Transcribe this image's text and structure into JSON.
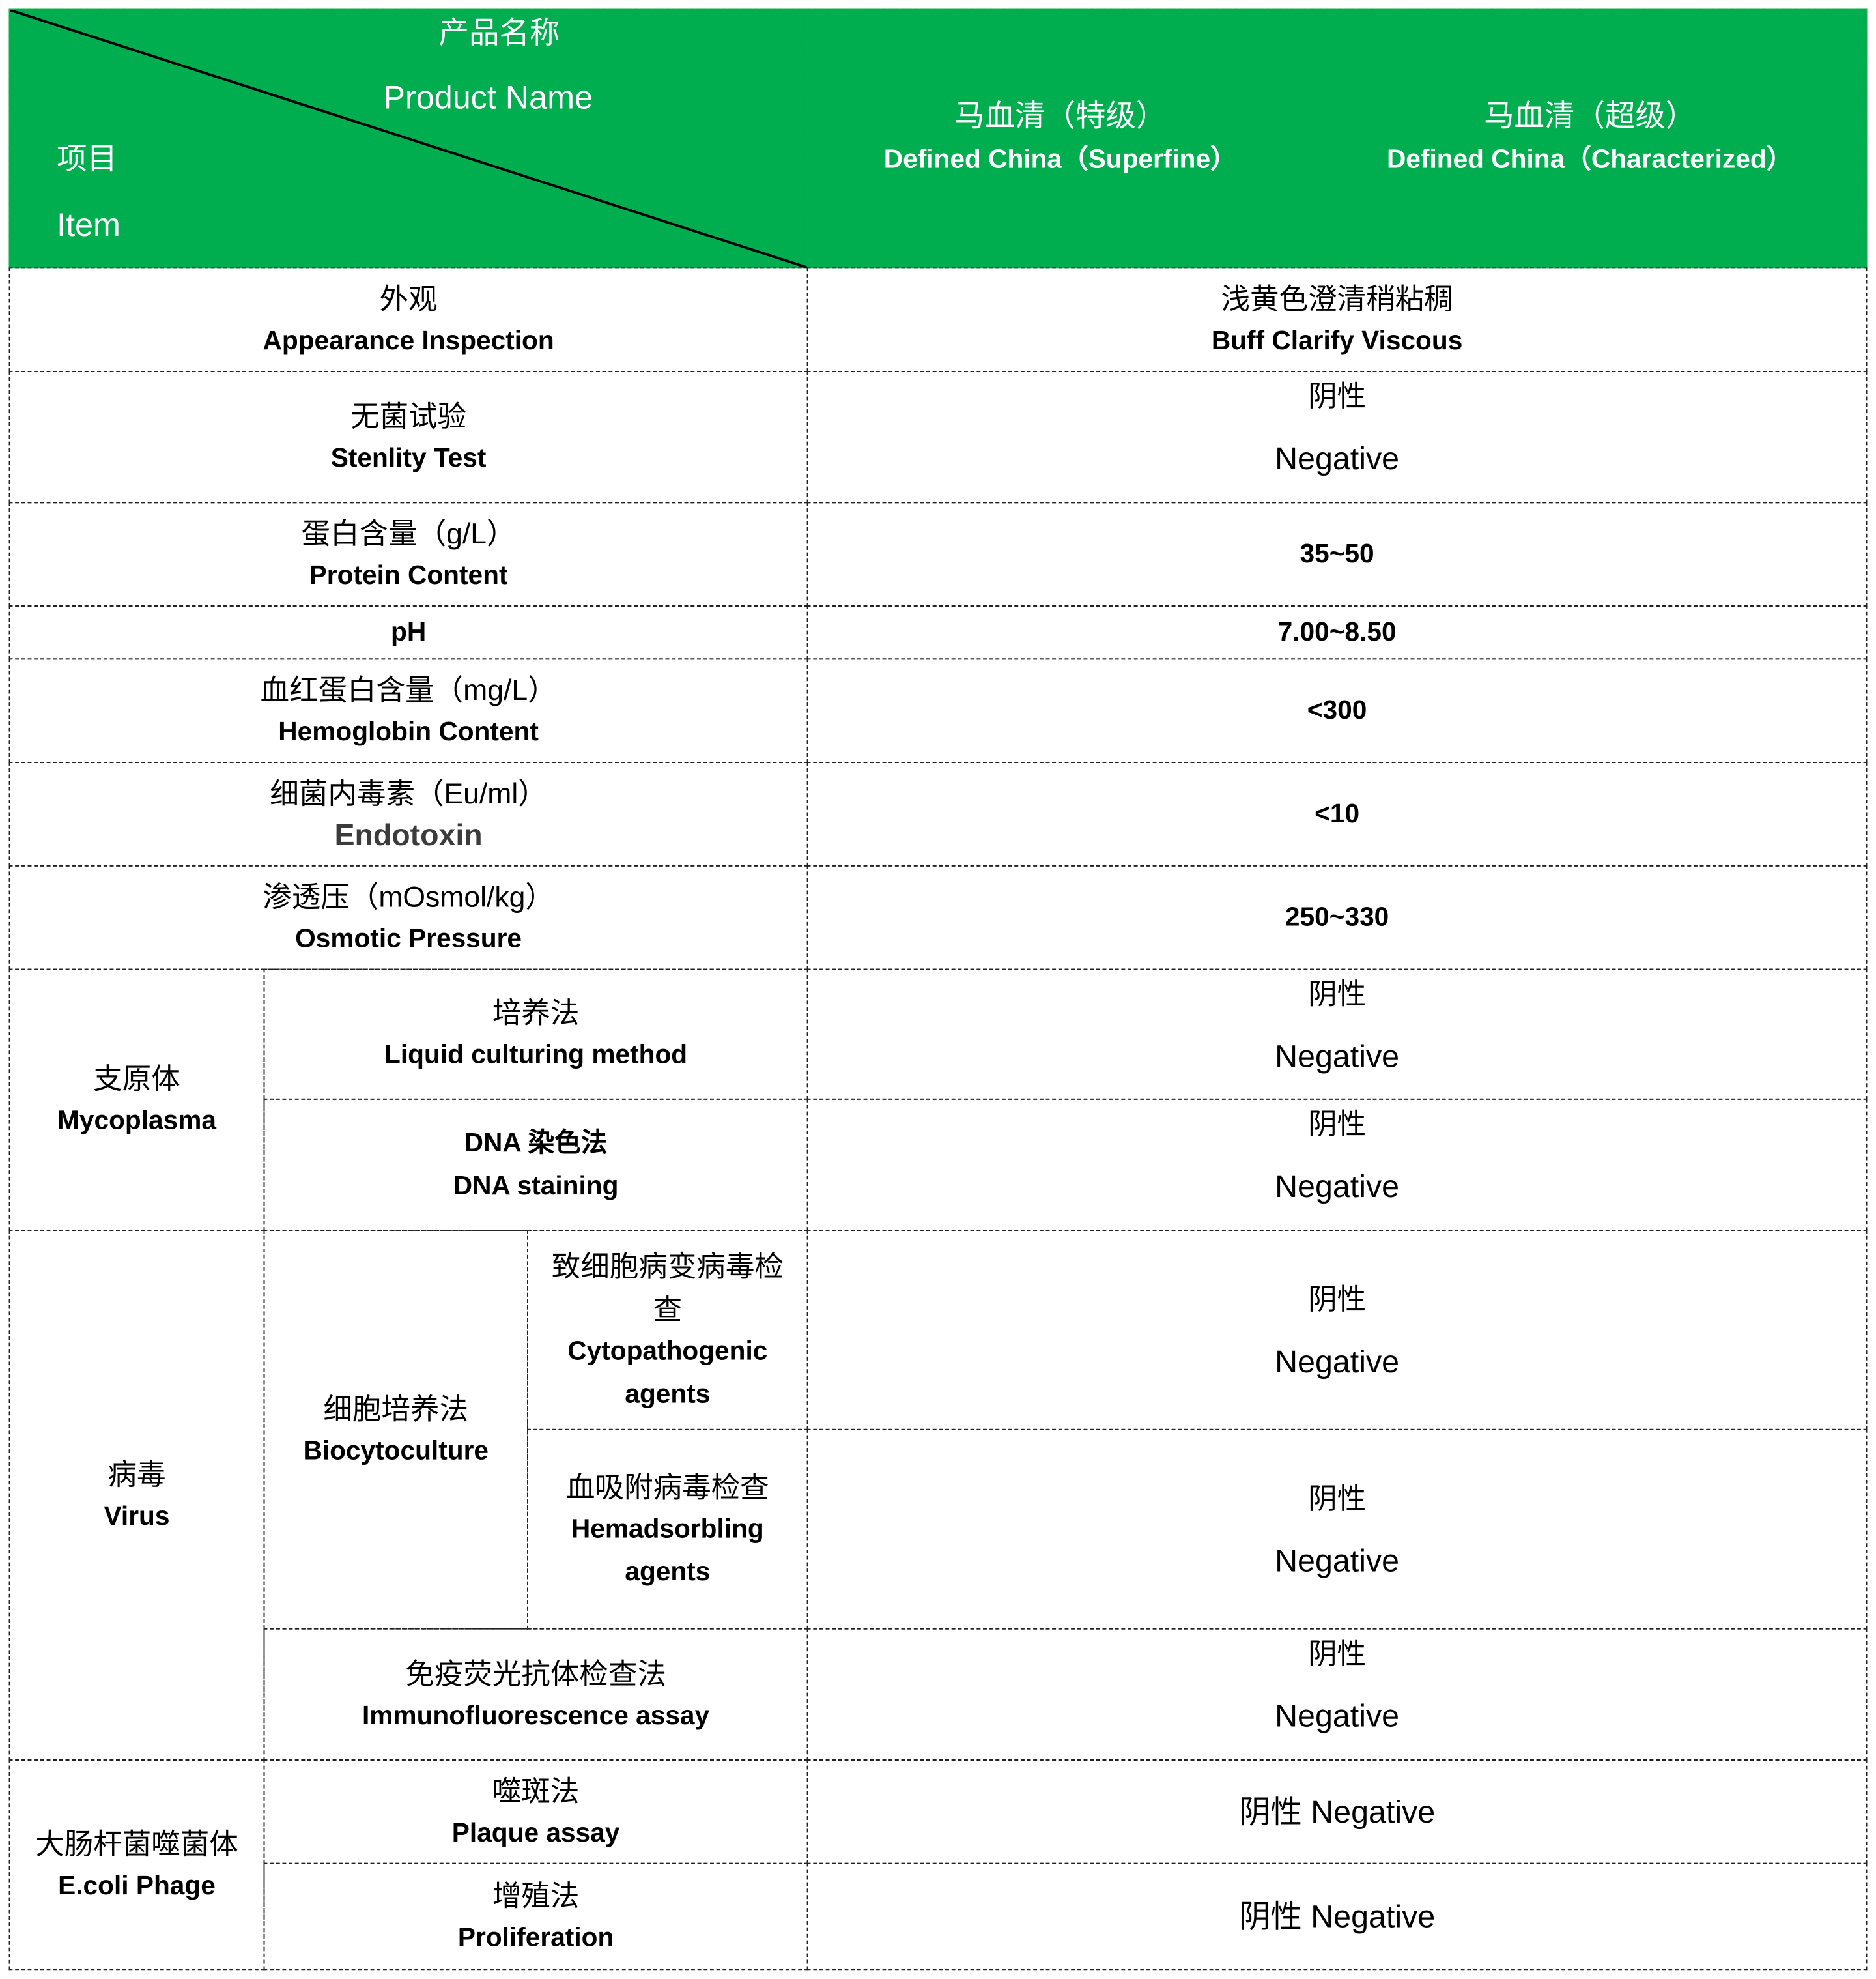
{
  "header": {
    "product_name_cn": "产品名称",
    "product_name_en": "Product Name",
    "item_cn": "项目",
    "item_en": "Item",
    "col1_cn": "马血清（特级）",
    "col1_en": "Defined China（Superfine）",
    "col2_cn": "马血清（超级）",
    "col2_en": "Defined China（Characterized）",
    "color": "#00ae4f"
  },
  "rows": [
    {
      "cn": "外观",
      "en": "Appearance Inspection",
      "value_cn": "浅黄色澄清稍粘稠",
      "value_en": "Buff Clarify Viscous"
    },
    {
      "cn": "无菌试验",
      "en": "Stenlity Test",
      "value_cn": "阴性",
      "value_en": "Negative"
    },
    {
      "cn": "蛋白含量（g/L）",
      "en": "Protein Content",
      "value": "35~50"
    },
    {
      "en": "pH",
      "value": "7.00~8.50"
    },
    {
      "cn": "血红蛋白含量（mg/L）",
      "en": "Hemoglobin Content",
      "value": "<300"
    },
    {
      "cn": "细菌内毒素（Eu/ml）",
      "en": "Endotoxin",
      "value": "<10"
    },
    {
      "cn": "渗透压（mOsmol/kg）",
      "en": "Osmotic Pressure",
      "value": "250~330"
    }
  ],
  "mycoplasma": {
    "cn": "支原体",
    "en": "Mycoplasma",
    "methods": [
      {
        "cn": "培养法",
        "en": "Liquid culturing method",
        "value_cn": "阴性",
        "value_en": "Negative"
      },
      {
        "cn": "DNA 染色法",
        "en": "DNA staining",
        "value_cn": "阴性",
        "value_en": "Negative"
      }
    ]
  },
  "virus": {
    "cn": "病毒",
    "en": "Virus",
    "biocyto": {
      "cn": "细胞培养法",
      "en": "Biocytoculture",
      "subs": [
        {
          "cn": "致细胞病变病毒检查",
          "en": "Cytopathogenic agents",
          "value_cn": "阴性",
          "value_en": "Negative"
        },
        {
          "cn": "血吸附病毒检查",
          "en": "Hemadsorbling agents",
          "value_cn": "阴性",
          "value_en": "Negative"
        }
      ]
    },
    "immuno": {
      "cn": "免疫荧光抗体检查法",
      "en": "Immunofluorescence assay",
      "value_cn": "阴性",
      "value_en": "Negative"
    }
  },
  "phage": {
    "cn": "大肠杆菌噬菌体",
    "en": "E.coli Phage",
    "methods": [
      {
        "cn": "噬斑法",
        "en": "Plaque assay",
        "value": "阴性 Negative"
      },
      {
        "cn": "增殖法",
        "en": "Proliferation",
        "value": "阴性 Negative"
      }
    ]
  }
}
